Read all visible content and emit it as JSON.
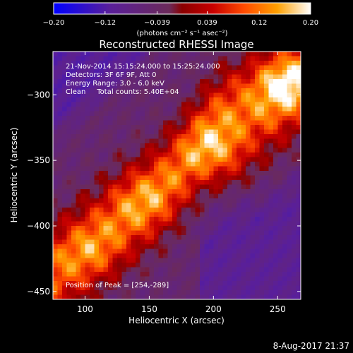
{
  "chart_data": {
    "type": "heatmap",
    "title": "Reconstructed RHESSI Image",
    "xlabel": "Heliocentric X (arcsec)",
    "ylabel": "Heliocentric Y (arcsec)",
    "xlim": [
      75,
      268
    ],
    "ylim": [
      -456,
      -267
    ],
    "xticks": [
      100,
      150,
      200,
      250
    ],
    "yticks": [
      -300,
      -350,
      -400,
      -450
    ],
    "colorbar": {
      "unit_label": "(photons cm⁻² s⁻¹ asec⁻²)",
      "range": [
        -0.2,
        0.2
      ],
      "tick_values": [
        -0.2,
        -0.12,
        -0.039,
        0.039,
        0.12,
        0.2
      ],
      "tick_labels": [
        "−0.20",
        "−0.12",
        "−0.039",
        "0.039",
        "0.12",
        "0.20"
      ],
      "colormap_stops": [
        [
          0.0,
          "#0000ff"
        ],
        [
          0.22,
          "#5a1f99"
        ],
        [
          0.45,
          "#6b2a5a"
        ],
        [
          0.5,
          "#8a0000"
        ],
        [
          0.62,
          "#c80000"
        ],
        [
          0.74,
          "#ff4a00"
        ],
        [
          0.87,
          "#ffa000"
        ],
        [
          1.0,
          "#ffffff"
        ]
      ]
    },
    "annotations": [
      "21-Nov-2014 15:15:24.000 to 15:25:24.000",
      "Detectors: 3F 6F 9F, Att 0",
      "Energy Range: 3.0 - 6.0 keV",
      "Clean     Total counts: 5.40E+04"
    ],
    "peak_label": "Position of Peak = [254,-289]",
    "peak_position": [
      254,
      -289
    ],
    "peak_value": 0.2,
    "sources": [
      {
        "x": 254,
        "y": -289,
        "amplitude": 0.2
      },
      {
        "x": 205,
        "y": -345,
        "amplitude": 0.18
      },
      {
        "x": 145,
        "y": -380,
        "amplitude": 0.13
      },
      {
        "x": 105,
        "y": -420,
        "amplitude": 0.12
      }
    ],
    "grid": false
  },
  "footer": {
    "date_label": "8-Aug-2017 21:37"
  }
}
